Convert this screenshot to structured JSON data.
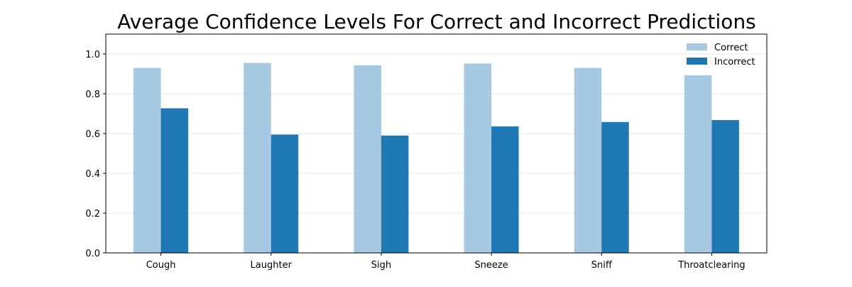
{
  "chart_data": {
    "type": "bar",
    "title": "Average Confidence Levels For Correct and Incorrect Predictions",
    "xlabel": "",
    "ylabel": "",
    "categories": [
      "Cough",
      "Laughter",
      "Sigh",
      "Sneeze",
      "Sniff",
      "Throatclearing"
    ],
    "series": [
      {
        "name": "Correct",
        "values": [
          0.93,
          0.955,
          0.943,
          0.952,
          0.93,
          0.893
        ],
        "color": "#a6c8e0"
      },
      {
        "name": "Incorrect",
        "values": [
          0.727,
          0.595,
          0.59,
          0.636,
          0.658,
          0.668
        ],
        "color": "#1f77b4"
      }
    ],
    "ylim": [
      0,
      1.1
    ],
    "yticks": [
      "0.0",
      "0.2",
      "0.4",
      "0.6",
      "0.8",
      "1.0"
    ],
    "grid": "horizontal",
    "legend_position": "top-right"
  }
}
